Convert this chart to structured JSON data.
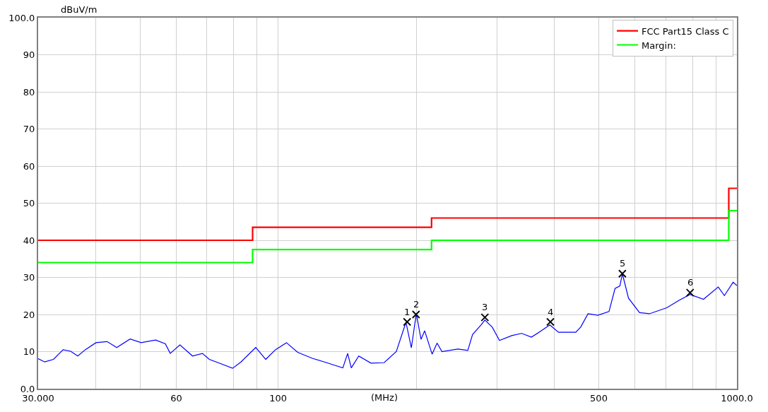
{
  "chart_data": {
    "type": "line",
    "xlabel": "(MHz)",
    "ylabel": "dBuV/m",
    "log": "x",
    "grid": true,
    "legend": "top right",
    "xlim": [
      30,
      1000
    ],
    "xticks": [
      {
        "value": 30,
        "label": "30.000"
      },
      {
        "value": 40,
        "label": null
      },
      {
        "value": 50,
        "label": null
      },
      60,
      {
        "value": 70,
        "label": null
      },
      {
        "value": 80,
        "label": null
      },
      {
        "value": 90,
        "label": null
      },
      100,
      {
        "value": 200,
        "label": null
      },
      {
        "value": 300,
        "label": null
      },
      {
        "value": 400,
        "label": null
      },
      500,
      {
        "value": 600,
        "label": null
      },
      {
        "value": 700,
        "label": null
      },
      {
        "value": 800,
        "label": null
      },
      {
        "value": 900,
        "label": null
      },
      {
        "value": 1000,
        "label": "1000.0"
      }
    ],
    "ylim": [
      0,
      100
    ],
    "yticks": [
      {
        "value": 0,
        "label": "0.0"
      },
      10,
      20,
      30,
      40,
      50,
      60,
      70,
      80,
      90,
      {
        "value": 100,
        "label": "100.0"
      }
    ],
    "series": [
      {
        "color": "#0000ff",
        "marker": "none",
        "x": [
          30,
          31.0,
          32.4,
          34.0,
          35.3,
          36.6,
          38.0,
          40.1,
          42.4,
          44.5,
          47.6,
          50.3,
          54.1,
          56.8,
          58.2,
          61.1,
          65.1,
          68.4,
          70.8,
          74.4,
          79.6,
          83.0,
          89.4,
          94.0,
          98.7,
          104.3,
          110.3,
          118.7,
          126.2,
          138.4,
          141.8,
          144.4,
          149.9,
          159.4,
          170.2,
          181,
          190.0,
          195.2,
          200.1,
          204.9,
          208.7,
          216.6,
          222.1,
          227.6,
          246.6,
          259.1,
          265.4,
          277.1,
          282.3,
          292.9,
          303.8,
          323.1,
          339.5,
          356.6,
          374.7,
          391.1,
          408.4,
          445.5,
          456.6,
          473.7,
          497.7,
          526.3,
          542.5,
          555.9,
          562.8,
          580.4,
          613.5,
          644.8,
          703.2,
          747.9,
          790.6,
          845.6,
          910.5,
          939.1,
          981.0,
          1000
        ],
        "values": [
          8.1,
          7.2,
          7.9,
          10.5,
          10.1,
          8.8,
          10.5,
          12.4,
          12.7,
          11.1,
          13.4,
          12.4,
          13.1,
          12.1,
          9.5,
          11.8,
          8.8,
          9.5,
          7.9,
          6.9,
          5.5,
          7.2,
          11.1,
          7.9,
          10.5,
          12.4,
          9.8,
          8.2,
          7.2,
          5.6,
          9.5,
          5.6,
          8.8,
          6.9,
          7.0,
          10.0,
          17.9,
          11.0,
          20.2,
          13.3,
          15.6,
          9.3,
          12.3,
          10.0,
          10.7,
          10.3,
          14.6,
          17.2,
          18.5,
          16.6,
          13.0,
          14.3,
          14.9,
          13.9,
          15.6,
          17.2,
          15.2,
          15.2,
          16.6,
          20.2,
          19.8,
          20.8,
          27.0,
          27.7,
          31.0,
          24.4,
          20.5,
          20.2,
          21.8,
          23.8,
          25.4,
          24.1,
          27.4,
          25.1,
          28.7,
          27.8
        ]
      },
      {
        "type": "step",
        "name": "FCC Part15 Class C",
        "color": "#ff0000",
        "marker": "none",
        "x": [
          30,
          88,
          216,
          960,
          1000
        ],
        "values": [
          40,
          43.5,
          46,
          54,
          54
        ]
      },
      {
        "type": "step",
        "name": "Margin:",
        "color": "#00ff00",
        "marker": "none",
        "x": [
          30,
          88,
          216,
          960,
          1000
        ],
        "values": [
          34,
          37.5,
          40,
          48,
          48
        ]
      },
      {
        "type": "scatter",
        "color": "#000000",
        "marker": "cross",
        "x": [
          191.1,
          199.8,
          282.3,
          392.2,
          562.8,
          790.6
        ],
        "values": [
          18.0,
          20.0,
          19.2,
          18.0,
          31.0,
          25.9
        ]
      }
    ],
    "annotations": [
      {
        "text": "1",
        "x": 191.1,
        "y": 18.0
      },
      {
        "text": "2",
        "x": 199.8,
        "y": 20.0
      },
      {
        "text": "3",
        "x": 282.3,
        "y": 19.2
      },
      {
        "text": "4",
        "x": 392.2,
        "y": 18.0
      },
      {
        "text": "5",
        "x": 562.8,
        "y": 31.0
      },
      {
        "text": "6",
        "x": 790.6,
        "y": 25.9
      }
    ]
  }
}
